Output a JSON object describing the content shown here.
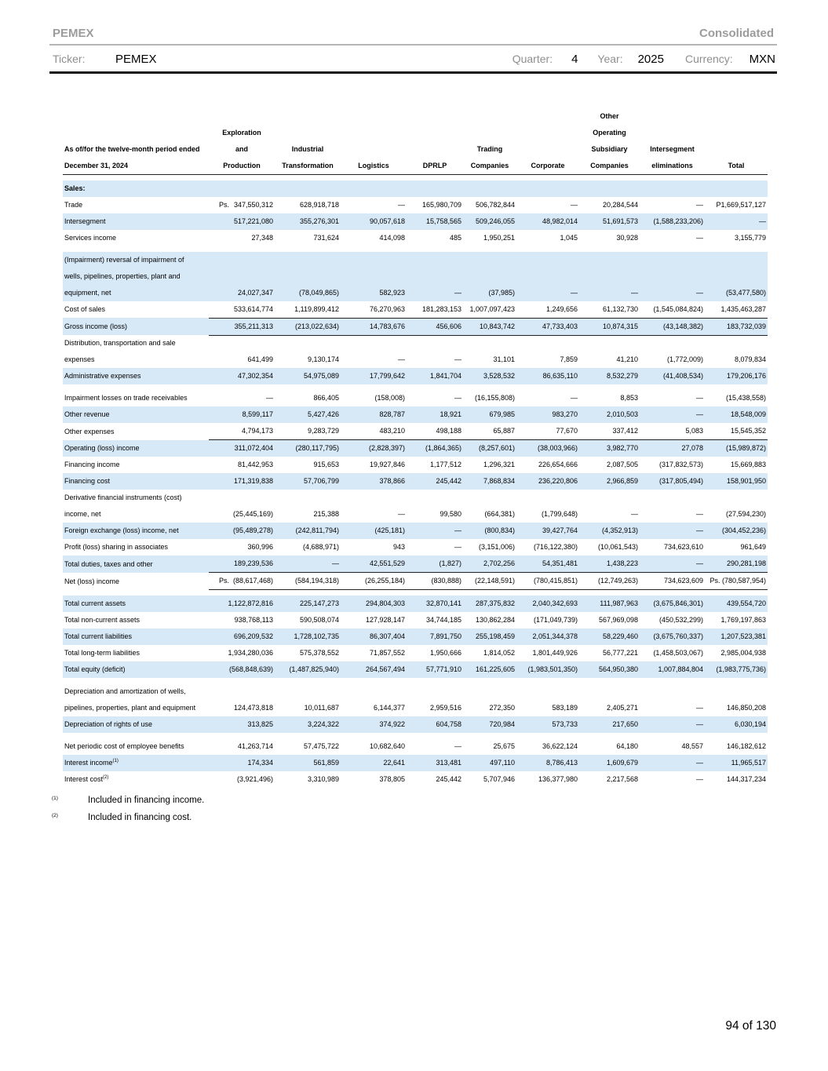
{
  "page": {
    "brand": "PEMEX",
    "report_type": "Consolidated",
    "footer_page": "94 of 130"
  },
  "filters": {
    "ticker_label": "Ticker:",
    "ticker_value": "PEMEX",
    "quarter_label": "Quarter:",
    "quarter_value": "4",
    "year_label": "Year:",
    "year_value": "2025",
    "currency_label": "Currency:",
    "currency_value": "MXN"
  },
  "table": {
    "row_header": [
      "As of/for the twelve-month period ended",
      "December 31, 2024"
    ],
    "columns": [
      {
        "lines": [
          "Exploration",
          "and",
          "Production"
        ]
      },
      {
        "lines": [
          "Industrial",
          "Transformation"
        ]
      },
      {
        "lines": [
          "Logistics"
        ]
      },
      {
        "lines": [
          "DPRLP"
        ]
      },
      {
        "lines": [
          "Trading",
          "Companies"
        ]
      },
      {
        "lines": [
          "Corporate"
        ]
      },
      {
        "lines": [
          "Other",
          "Operating",
          "Subsidiary",
          "Companies"
        ]
      },
      {
        "lines": [
          "Intersegment",
          "eliminations"
        ]
      },
      {
        "lines": [
          "Total"
        ]
      }
    ],
    "rows": [
      {
        "id": "sales-section",
        "label_lines": [
          "Sales:"
        ],
        "bold": true,
        "shaded": true,
        "gap_before": true,
        "values": [
          "",
          "",
          "",
          "",
          "",
          "",
          "",
          "",
          ""
        ]
      },
      {
        "id": "trade",
        "label_lines": [
          "Trade"
        ],
        "prefix": "Ps.",
        "values": [
          "347,550,312",
          "628,918,718",
          "—",
          "165,980,709",
          "506,782,844",
          "—",
          "20,284,544",
          "—",
          "P1,669,517,127"
        ]
      },
      {
        "id": "intersegment",
        "label_lines": [
          "Intersegment"
        ],
        "shaded": true,
        "values": [
          "517,221,080",
          "355,276,301",
          "90,057,618",
          "15,758,565",
          "509,246,055",
          "48,982,014",
          "51,691,573",
          "(1,588,233,206)",
          "—"
        ]
      },
      {
        "id": "services-income",
        "label_lines": [
          "Services income"
        ],
        "values": [
          "27,348",
          "731,624",
          "414,098",
          "485",
          "1,950,251",
          "1,045",
          "30,928",
          "—",
          "3,155,779"
        ]
      },
      {
        "id": "impairment-reversal",
        "label_lines": [
          "(Impairment) reversal of impairment of",
          "wells, pipelines, properties, plant and",
          "equipment, net"
        ],
        "shaded": true,
        "gap_before": true,
        "values": [
          "24,027,347",
          "(78,049,865)",
          "582,923",
          "—",
          "(37,985)",
          "—",
          "—",
          "—",
          "(53,477,580)"
        ]
      },
      {
        "id": "cost-of-sales",
        "label_lines": [
          "Cost of sales"
        ],
        "rule_below": true,
        "values": [
          "533,614,774",
          "1,119,899,412",
          "76,270,963",
          "181,283,153",
          "1,007,097,423",
          "1,249,656",
          "61,132,730",
          "(1,545,084,824)",
          "1,435,463,287"
        ]
      },
      {
        "id": "gross-income",
        "label_lines": [
          "Gross income (loss)"
        ],
        "shaded": true,
        "rule_below": true,
        "values": [
          "355,211,313",
          "(213,022,634)",
          "14,783,676",
          "456,606",
          "10,843,742",
          "47,733,403",
          "10,874,315",
          "(43,148,382)",
          "183,732,039"
        ]
      },
      {
        "id": "distribution-expenses",
        "label_lines": [
          "Distribution, transportation and sale",
          "expenses"
        ],
        "values": [
          "641,499",
          "9,130,174",
          "—",
          "—",
          "31,101",
          "7,859",
          "41,210",
          "(1,772,009)",
          "8,079,834"
        ]
      },
      {
        "id": "administrative-expenses",
        "label_lines": [
          "Administrative expenses"
        ],
        "shaded": true,
        "values": [
          "47,302,354",
          "54,975,089",
          "17,799,642",
          "1,841,704",
          "3,528,532",
          "86,635,110",
          "8,532,279",
          "(41,408,534)",
          "179,206,176"
        ]
      },
      {
        "id": "impairment-losses-receivables",
        "label_lines": [
          "Impairment losses on trade receivables"
        ],
        "gap_before": true,
        "values": [
          "—",
          "866,405",
          "(158,008)",
          "—",
          "(16,155,808)",
          "—",
          "8,853",
          "—",
          "(15,438,558)"
        ]
      },
      {
        "id": "other-revenue",
        "label_lines": [
          "Other revenue"
        ],
        "shaded": true,
        "values": [
          "8,599,117",
          "5,427,426",
          "828,787",
          "18,921",
          "679,985",
          "983,270",
          "2,010,503",
          "—",
          "18,548,009"
        ]
      },
      {
        "id": "other-expenses",
        "label_lines": [
          "Other expenses"
        ],
        "rule_below": true,
        "values": [
          "4,794,173",
          "9,283,729",
          "483,210",
          "498,188",
          "65,887",
          "77,670",
          "337,412",
          "5,083",
          "15,545,352"
        ]
      },
      {
        "id": "operating-income",
        "label_lines": [
          "Operating (loss) income"
        ],
        "shaded": true,
        "values": [
          "311,072,404",
          "(280,117,795)",
          "(2,828,397)",
          "(1,864,365)",
          "(8,257,601)",
          "(38,003,966)",
          "3,982,770",
          "27,078",
          "(15,989,872)"
        ]
      },
      {
        "id": "financing-income",
        "label_lines": [
          "Financing income"
        ],
        "values": [
          "81,442,953",
          "915,653",
          "19,927,846",
          "1,177,512",
          "1,296,321",
          "226,654,666",
          "2,087,505",
          "(317,832,573)",
          "15,669,883"
        ]
      },
      {
        "id": "financing-cost",
        "label_lines": [
          "Financing cost"
        ],
        "shaded": true,
        "values": [
          "171,319,838",
          "57,706,799",
          "378,866",
          "245,442",
          "7,868,834",
          "236,220,806",
          "2,966,859",
          "(317,805,494)",
          "158,901,950"
        ]
      },
      {
        "id": "derivative-instruments",
        "label_lines": [
          "Derivative financial instruments (cost)",
          "income, net"
        ],
        "values": [
          "(25,445,169)",
          "215,388",
          "—",
          "99,580",
          "(664,381)",
          "(1,799,648)",
          "—",
          "—",
          "(27,594,230)"
        ]
      },
      {
        "id": "foreign-exchange",
        "label_lines": [
          "Foreign exchange (loss) income, net"
        ],
        "shaded": true,
        "values": [
          "(95,489,278)",
          "(242,811,794)",
          "(425,181)",
          "—",
          "(800,834)",
          "39,427,764",
          "(4,352,913)",
          "—",
          "(304,452,236)"
        ]
      },
      {
        "id": "profit-sharing-associates",
        "label_lines": [
          "Profit (loss) sharing in associates"
        ],
        "values": [
          "360,996",
          "(4,688,971)",
          "943",
          "—",
          "(3,151,006)",
          "(716,122,380)",
          "(10,061,543)",
          "734,623,610",
          "961,649"
        ]
      },
      {
        "id": "total-duties-taxes",
        "label_lines": [
          "Total duties, taxes and other"
        ],
        "shaded": true,
        "rule_below": true,
        "values": [
          "189,239,536",
          "—",
          "42,551,529",
          "(1,827)",
          "2,702,256",
          "54,351,481",
          "1,438,223",
          "—",
          "290,281,198"
        ]
      },
      {
        "id": "net-income",
        "label_lines": [
          "Net (loss) income"
        ],
        "prefix": "Ps.",
        "rule_below": true,
        "values": [
          "(88,617,468)",
          "(584,194,318)",
          "(26,255,184)",
          "(830,888)",
          "(22,148,591)",
          "(780,415,851)",
          "(12,749,263)",
          "734,623,609",
          "Ps. (780,587,954)"
        ]
      },
      {
        "id": "total-current-assets",
        "label_lines": [
          "Total current assets"
        ],
        "shaded": true,
        "gap_before": true,
        "values": [
          "1,122,872,816",
          "225,147,273",
          "294,804,303",
          "32,870,141",
          "287,375,832",
          "2,040,342,693",
          "111,987,963",
          "(3,675,846,301)",
          "439,554,720"
        ]
      },
      {
        "id": "total-non-current-assets",
        "label_lines": [
          "Total non-current assets"
        ],
        "values": [
          "938,768,113",
          "590,508,074",
          "127,928,147",
          "34,744,185",
          "130,862,284",
          "(171,049,739)",
          "567,969,098",
          "(450,532,299)",
          "1,769,197,863"
        ]
      },
      {
        "id": "total-current-liabilities",
        "label_lines": [
          "Total current liabilities"
        ],
        "shaded": true,
        "values": [
          "696,209,532",
          "1,728,102,735",
          "86,307,404",
          "7,891,750",
          "255,198,459",
          "2,051,344,378",
          "58,229,460",
          "(3,675,760,337)",
          "1,207,523,381"
        ]
      },
      {
        "id": "total-long-term-liabilities",
        "label_lines": [
          "Total long-term liabilities"
        ],
        "values": [
          "1,934,280,036",
          "575,378,552",
          "71,857,552",
          "1,950,666",
          "1,814,052",
          "1,801,449,926",
          "56,777,221",
          "(1,458,503,067)",
          "2,985,004,938"
        ]
      },
      {
        "id": "total-equity",
        "label_lines": [
          "Total equity (deficit)"
        ],
        "shaded": true,
        "values": [
          "(568,848,639)",
          "(1,487,825,940)",
          "264,567,494",
          "57,771,910",
          "161,225,605",
          "(1,983,501,350)",
          "564,950,380",
          "1,007,884,804",
          "(1,983,775,736)"
        ]
      },
      {
        "id": "depreciation-amortization",
        "label_lines": [
          "Depreciation and amortization of wells,",
          "pipelines, properties, plant and equipment"
        ],
        "gap_before": true,
        "values": [
          "124,473,818",
          "10,011,687",
          "6,144,377",
          "2,959,516",
          "272,350",
          "583,189",
          "2,405,271",
          "—",
          "146,850,208"
        ]
      },
      {
        "id": "depreciation-rights-of-use",
        "label_lines": [
          "Depreciation of rights of use"
        ],
        "shaded": true,
        "values": [
          "313,825",
          "3,224,322",
          "374,922",
          "604,758",
          "720,984",
          "573,733",
          "217,650",
          "—",
          "6,030,194"
        ]
      },
      {
        "id": "net-periodic-employee-benefits",
        "label_lines": [
          "Net periodic cost of employee benefits"
        ],
        "gap_before": true,
        "values": [
          "41,263,714",
          "57,475,722",
          "10,682,640",
          "—",
          "25,675",
          "36,622,124",
          "64,180",
          "48,557",
          "146,182,612"
        ]
      },
      {
        "id": "interest-income",
        "label_lines": [
          "Interest income"
        ],
        "sup": "(1)",
        "shaded": true,
        "values": [
          "174,334",
          "561,859",
          "22,641",
          "313,481",
          "497,110",
          "8,786,413",
          "1,609,679",
          "—",
          "11,965,517"
        ]
      },
      {
        "id": "interest-cost",
        "label_lines": [
          "Interest cost"
        ],
        "sup": "(2)",
        "values": [
          "(3,921,496)",
          "3,310,989",
          "378,805",
          "245,442",
          "5,707,946",
          "136,377,980",
          "2,217,568",
          "—",
          "144,317,234"
        ]
      }
    ]
  },
  "footnotes": [
    {
      "marker": "(1)",
      "text": "Included in financing income."
    },
    {
      "marker": "(2)",
      "text": "Included in financing cost."
    }
  ]
}
